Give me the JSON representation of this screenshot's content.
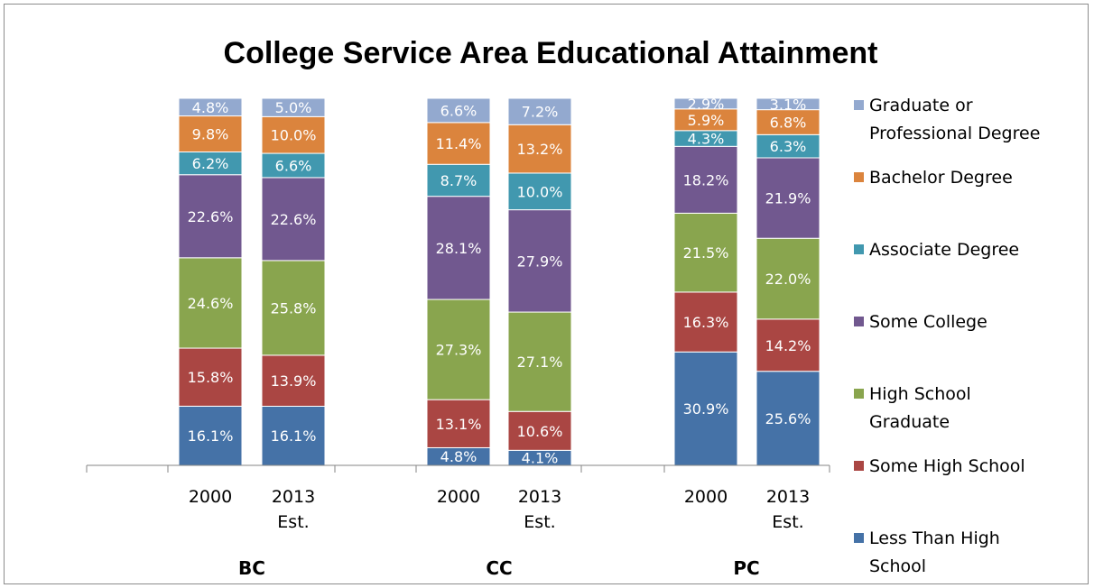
{
  "chart_data": {
    "type": "bar",
    "stacked": true,
    "normalized_percent": true,
    "title": "College Service Area Educational Attainment",
    "groups": [
      {
        "name": "BC",
        "bars": [
          {
            "label": [
              "2000"
            ]
          },
          {
            "label": [
              "2013",
              "Est."
            ]
          }
        ]
      },
      {
        "name": "CC",
        "bars": [
          {
            "label": [
              "2000"
            ]
          },
          {
            "label": [
              "2013",
              "Est."
            ]
          }
        ]
      },
      {
        "name": "PC",
        "bars": [
          {
            "label": [
              "2000"
            ]
          },
          {
            "label": [
              "2013",
              "Est."
            ]
          }
        ]
      }
    ],
    "series": [
      {
        "name": "Less Than High School",
        "legend_lines": [
          "Less Than High",
          "School"
        ],
        "color": "#4572a7",
        "values": [
          16.1,
          16.1,
          4.8,
          4.1,
          30.9,
          25.6
        ],
        "labels": [
          "16.1%",
          "16.1%",
          "4.8%",
          "4.1%",
          "30.9%",
          "25.6%"
        ]
      },
      {
        "name": "Some High School",
        "legend_lines": [
          "Some High School"
        ],
        "color": "#aa4643",
        "values": [
          15.8,
          13.9,
          13.1,
          10.6,
          16.3,
          14.2
        ],
        "labels": [
          "15.8%",
          "13.9%",
          "13.1%",
          "10.6%",
          "16.3%",
          "14.2%"
        ]
      },
      {
        "name": "High School Graduate",
        "legend_lines": [
          "High School",
          "Graduate"
        ],
        "color": "#89a54e",
        "values": [
          24.6,
          25.8,
          27.3,
          27.1,
          21.5,
          22.0
        ],
        "labels": [
          "24.6%",
          "25.8%",
          "27.3%",
          "27.1%",
          "21.5%",
          "22.0%"
        ]
      },
      {
        "name": "Some College",
        "legend_lines": [
          "Some College"
        ],
        "color": "#71588f",
        "values": [
          22.6,
          22.6,
          28.1,
          27.9,
          18.2,
          21.9
        ],
        "labels": [
          "22.6%",
          "22.6%",
          "28.1%",
          "27.9%",
          "18.2%",
          "21.9%"
        ]
      },
      {
        "name": "Associate Degree",
        "legend_lines": [
          "Associate Degree"
        ],
        "color": "#4198af",
        "values": [
          6.2,
          6.6,
          8.7,
          10.0,
          4.3,
          6.3
        ],
        "labels": [
          "6.2%",
          "6.6%",
          "8.7%",
          "10.0%",
          "4.3%",
          "6.3%"
        ]
      },
      {
        "name": "Bachelor Degree",
        "legend_lines": [
          "Bachelor Degree"
        ],
        "color": "#db843d",
        "values": [
          9.8,
          10.0,
          11.4,
          13.2,
          5.9,
          6.8
        ],
        "labels": [
          "9.8%",
          "10.0%",
          "11.4%",
          "13.2%",
          "5.9%",
          "6.8%"
        ]
      },
      {
        "name": "Graduate or Professional Degree",
        "legend_lines": [
          "Graduate or",
          "Professional Degree"
        ],
        "color": "#93a9cf",
        "values": [
          4.8,
          5.0,
          6.6,
          7.2,
          2.9,
          3.1
        ],
        "labels": [
          "4.8%",
          "5.0%",
          "6.6%",
          "7.2%",
          "2.9%",
          "3.1%"
        ]
      }
    ],
    "legend_position": "right",
    "grid": false
  }
}
